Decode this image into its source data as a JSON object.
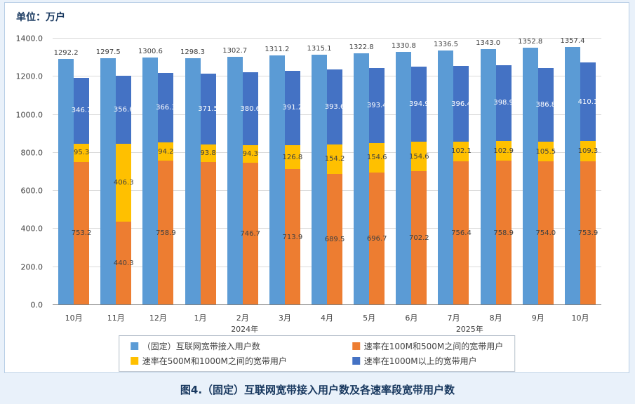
{
  "page": {
    "unit_label": "单位：万户",
    "caption": "图4.（固定）互联网宽带接入用户数及各速率段宽带用户数"
  },
  "chart_data": {
    "type": "bar",
    "title": "图4.（固定）互联网宽带接入用户数及各速率段宽带用户数",
    "unit": "万户",
    "categories": [
      "10月",
      "11月",
      "12月",
      "1月",
      "2月",
      "3月",
      "4月",
      "5月",
      "6月",
      "7月",
      "8月",
      "9月",
      "10月"
    ],
    "year_labels": [
      {
        "label": "2024年",
        "center": 0.35
      },
      {
        "label": "2025年",
        "center": 0.76
      }
    ],
    "ylim": [
      0,
      1400
    ],
    "yticks": [
      "0.0",
      "200.0",
      "400.0",
      "600.0",
      "800.0",
      "1000.0",
      "1200.0",
      "1400.0"
    ],
    "grid": true,
    "legend_position": "bottom",
    "series": [
      {
        "key": "total",
        "name": "（固定）互联网宽带接入用户数",
        "color": "#5B9BD5",
        "style": "separate",
        "label_color": "#404040",
        "values": [
          1292.2,
          1297.5,
          1300.6,
          1298.3,
          1302.7,
          1311.2,
          1315.1,
          1322.8,
          1330.8,
          1336.5,
          1343.0,
          1352.8,
          1357.4
        ],
        "labels": [
          "1292.2",
          "1297.5",
          "1300.6",
          "1298.3",
          "1302.7",
          "1311.2",
          "1315.1",
          "1322.8",
          "1330.8",
          "1336.5",
          "1343.0",
          "1352.8",
          "1357.4"
        ]
      },
      {
        "key": "100m-500m",
        "name": "速率在100M和500M之间的宽带用户",
        "color": "#ED7D31",
        "style": "stacked",
        "label_color": "#404040",
        "values": [
          753.2,
          440.3,
          758.9,
          750.0,
          746.7,
          713.9,
          689.5,
          696.7,
          702.2,
          756.4,
          758.9,
          754.0,
          753.9
        ],
        "labels": [
          "753.2",
          "440.3",
          "758.9",
          "",
          "746.7",
          "713.9",
          "689.5",
          "696.7",
          "702.2",
          "756.4",
          "758.9",
          "754.0",
          "753.9"
        ]
      },
      {
        "key": "500m-1000m",
        "name": "速率在500M和1000M之间的宽带用户",
        "color": "#FFC000",
        "style": "stacked",
        "label_color": "#404040",
        "values": [
          95.3,
          406.3,
          94.2,
          93.8,
          94.3,
          126.8,
          154.2,
          154.6,
          154.6,
          102.1,
          102.9,
          105.5,
          109.3
        ],
        "labels": [
          "95.3",
          "406.3",
          "94.2",
          "93.8",
          "94.3",
          "126.8",
          "154.2",
          "154.6",
          "154.6",
          "102.1",
          "102.9",
          "105.5",
          "109.3"
        ]
      },
      {
        "key": "1000m-plus",
        "name": "速率在1000M以上的宽带用户",
        "color": "#4472C4",
        "style": "stacked",
        "label_color": "#FFFFFF",
        "values": [
          346.7,
          356.6,
          366.3,
          371.5,
          380.6,
          391.2,
          393.6,
          393.4,
          394.9,
          396.4,
          398.9,
          386.8,
          410.1
        ],
        "labels": [
          "346.7",
          "356.6",
          "366.3",
          "371.5",
          "380.6",
          "391.2",
          "393.6",
          "393.4",
          "394.9",
          "396.4",
          "398.9",
          "386.8",
          "410.1"
        ]
      }
    ],
    "colors": {
      "page_bg": "#E9F1FA",
      "panel_bg": "#FFFFFF",
      "panel_border": "#B9CFE6",
      "gridline": "#D9D9D9",
      "axis_line": "#808080",
      "text": "#404040",
      "heading": "#17375E"
    }
  }
}
